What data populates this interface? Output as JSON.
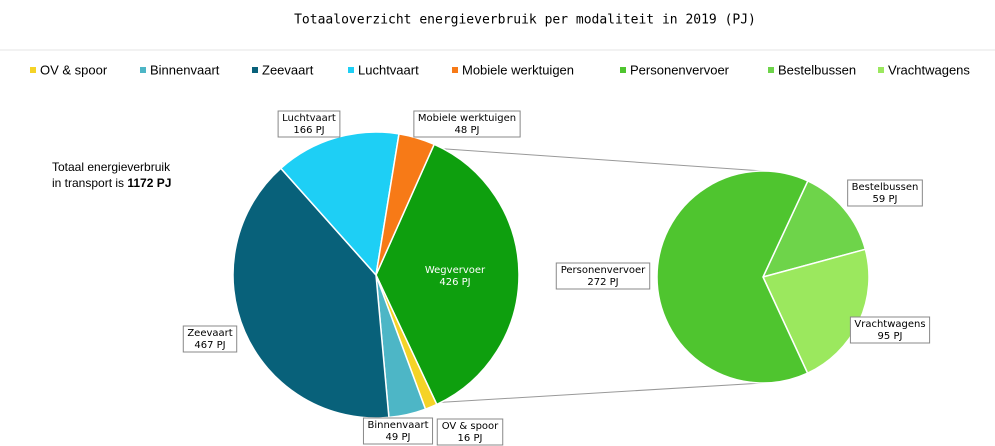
{
  "chart_data": {
    "type": "pie-of-pie",
    "title": "Totaaloverzicht energieverbruik per modaliteit in 2019 (PJ)",
    "annotation": {
      "line1": "Totaal energieverbruik",
      "line2": "in transport is",
      "total_label": "1172 PJ"
    },
    "main": {
      "categories": [
        "Wegvervoer",
        "OV & spoor",
        "Binnenvaart",
        "Zeevaart",
        "Luchtvaart",
        "Mobiele werktuigen"
      ],
      "values": [
        426,
        16,
        49,
        467,
        166,
        48
      ],
      "value_labels": [
        "426 PJ",
        "16 PJ",
        "49 PJ",
        "467 PJ",
        "166 PJ",
        "48 PJ"
      ],
      "colors": [
        "#0e9f0e",
        "#f5d327",
        "#4db6c6",
        "#08617a",
        "#1ecff5",
        "#f77a17"
      ]
    },
    "breakdown": {
      "categories": [
        "Bestelbussen",
        "Vrachtwagens",
        "Personenvervoer"
      ],
      "values": [
        59,
        95,
        272
      ],
      "value_labels": [
        "59 PJ",
        "95 PJ",
        "272 PJ"
      ],
      "colors": [
        "#6ed44a",
        "#9be85e",
        "#4fc52f"
      ]
    }
  }
}
